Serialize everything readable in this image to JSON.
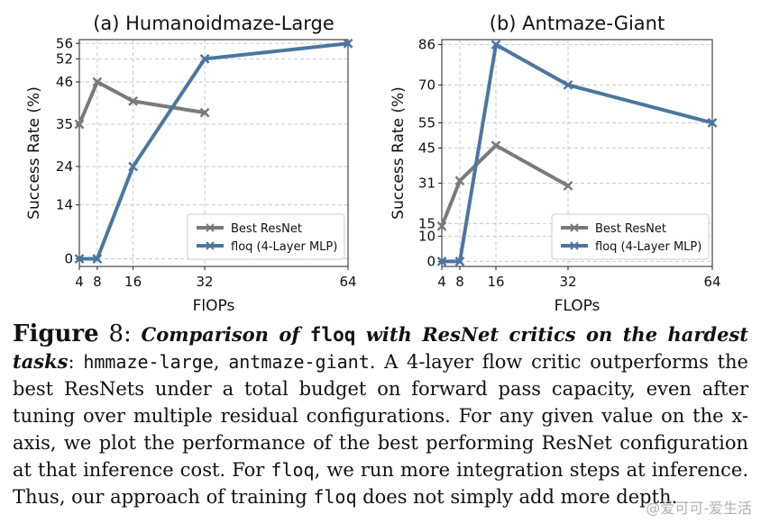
{
  "chart_data": [
    {
      "type": "line",
      "title": "(a) Humanoidmaze-Large",
      "xlabel": "FlOPs",
      "ylabel": "Success Rate (%)",
      "xticks": [
        4,
        8,
        16,
        32,
        64
      ],
      "yticks": [
        0,
        14,
        24,
        35,
        46,
        52,
        56
      ],
      "xlim": [
        4,
        64
      ],
      "ylim": [
        -2,
        57
      ],
      "grid": true,
      "legend_position": "lower-right",
      "series": [
        {
          "name": "Best ResNet",
          "color": "#7a7a7a",
          "x": [
            4,
            8,
            16,
            32
          ],
          "y": [
            35,
            46,
            41,
            38
          ]
        },
        {
          "name": "floq (4-Layer MLP)",
          "color": "#4a77a0",
          "x": [
            4,
            8,
            16,
            32,
            64
          ],
          "y": [
            0,
            0,
            24,
            52,
            56
          ]
        }
      ]
    },
    {
      "type": "line",
      "title": "(b) Antmaze-Giant",
      "xlabel": "FLOPs",
      "ylabel": "Success Rate (%)",
      "xticks": [
        4,
        8,
        16,
        32,
        64
      ],
      "yticks": [
        0,
        10,
        15,
        31,
        45,
        55,
        70,
        86
      ],
      "xlim": [
        4,
        64
      ],
      "ylim": [
        -2,
        88
      ],
      "grid": true,
      "legend_position": "lower-right",
      "series": [
        {
          "name": "Best ResNet",
          "color": "#7a7a7a",
          "x": [
            4,
            8,
            16,
            32
          ],
          "y": [
            14,
            32,
            46,
            30
          ]
        },
        {
          "name": "floq (4-Layer MLP)",
          "color": "#4a77a0",
          "x": [
            4,
            8,
            16,
            32,
            64
          ],
          "y": [
            0,
            0,
            86,
            70,
            55
          ]
        }
      ]
    }
  ],
  "caption": {
    "label": "Figure",
    "number": "8",
    "headline_pre": "Comparison of ",
    "headline_code": "floq",
    "headline_post": " with ResNet critics on the hardest tasks",
    "task1": "hmmaze-large",
    "task2": "antmaze-giant",
    "body1": ". A 4-layer flow critic outperforms the best ResNets under a total budget on forward pass capacity, even after tuning over multiple residual configurations. For any given value on the x-axis, we plot the performance of the best performing ResNet configuration at that inference cost. For ",
    "code2": "floq",
    "body2": ", we run more integration steps at inference. Thus, our approach of training ",
    "code3": "floq",
    "body3": " does not simply add more depth."
  },
  "watermark": "@爱可可-爱生活"
}
